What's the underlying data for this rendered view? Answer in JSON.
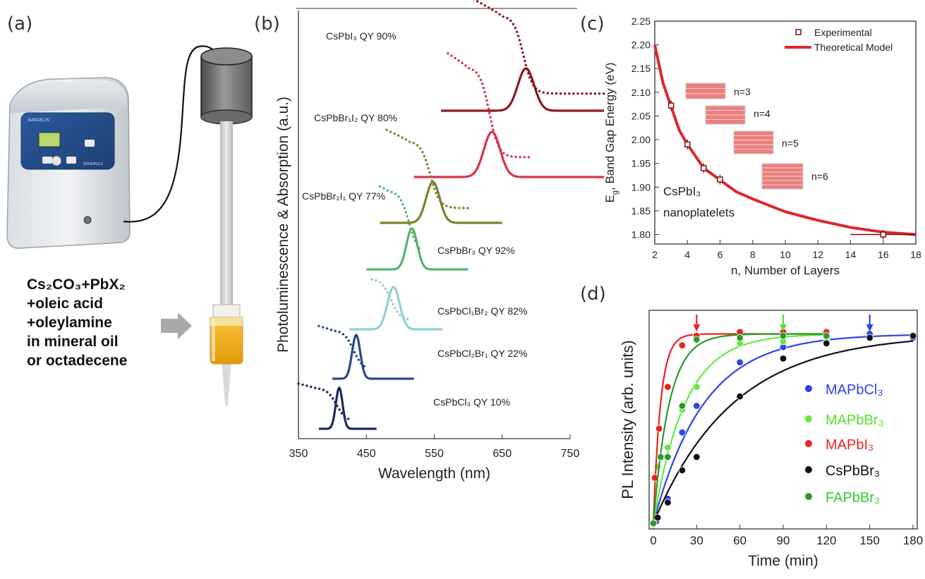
{
  "panels": {
    "a": {
      "label": "(a)",
      "instrument_brand": "BANDELIN",
      "instrument_model": "SONOPULS",
      "recipe": [
        "Cs₂CO₃+PbX₂",
        "+oleic acid",
        "+oleylamine",
        "in mineral oil",
        "or octadecene"
      ]
    },
    "b": {
      "label": "(b)"
    },
    "c": {
      "label": "(c)"
    },
    "d": {
      "label": "(d)"
    }
  },
  "chart_data": [
    {
      "id": "b",
      "type": "line",
      "xlabel": "Wavelength (nm)",
      "ylabel": "Photoluminescence & Absorption (a.u.)",
      "xlim": [
        350,
        750
      ],
      "xticks": [
        "350",
        "450",
        "550",
        "650",
        "750"
      ],
      "series": [
        {
          "name": "CsPbI₃  QY 90%",
          "color": "#8b1a22",
          "pl_peak_nm": 685,
          "pl_range_nm": [
            560,
            800
          ],
          "abs_range_nm": [
            608,
            800
          ]
        },
        {
          "name": "CsPbBr₁I₂  QY 80%",
          "color": "#d6344a",
          "pl_peak_nm": 635,
          "pl_range_nm": [
            520,
            800
          ],
          "abs_range_nm": [
            570,
            690
          ]
        },
        {
          "name": "CsPbBr₂I₁  QY 77%",
          "color": "#7f7f2e",
          "pl_peak_nm": 548,
          "pl_range_nm": [
            470,
            650
          ],
          "abs_range_nm": [
            480,
            600
          ]
        },
        {
          "name": "CsPbBr₃  QY 92%",
          "color": "#55b56a",
          "pl_peak_nm": 517,
          "pl_range_nm": [
            450,
            600
          ],
          "abs_range_nm": [
            470,
            530
          ]
        },
        {
          "name": "CsPbCl₁Br₂  QY 82%",
          "color": "#8fcfd6",
          "pl_peak_nm": 490,
          "pl_range_nm": [
            425,
            562
          ],
          "abs_range_nm": [
            458,
            515
          ]
        },
        {
          "name": "CsPbCl₂Br₁  QY 22%",
          "color": "#2b4889",
          "pl_peak_nm": 435,
          "pl_range_nm": [
            400,
            520
          ],
          "abs_range_nm": [
            380,
            450
          ]
        },
        {
          "name": "CsPbCl₃  QY 10%",
          "color": "#1e2a5c",
          "pl_peak_nm": 410,
          "pl_range_nm": [
            380,
            465
          ],
          "abs_range_nm": [
            350,
            425
          ]
        }
      ]
    },
    {
      "id": "c",
      "type": "scatter",
      "xlabel": "n, Number of Layers",
      "ylabel": "E₉, Band Gap Energy (eV)",
      "ylabel_parts": [
        "E",
        "g",
        ", Band Gap Energy (eV)"
      ],
      "xlim": [
        2,
        18
      ],
      "ylim": [
        1.78,
        2.25
      ],
      "xticks": [
        "2",
        "4",
        "6",
        "8",
        "10",
        "12",
        "14",
        "16",
        "18"
      ],
      "yticks": [
        "1.80",
        "1.85",
        "1.90",
        "1.95",
        "2.00",
        "2.05",
        "2.10",
        "2.15",
        "2.20",
        "2.25"
      ],
      "legend": [
        "Experimental",
        "Theoretical Model"
      ],
      "legend_position": "top-right",
      "annotation": [
        "CsPbI₃",
        "nanoplatelets"
      ],
      "layer_labels": [
        "n=3",
        "n=4",
        "n=5",
        "n=6"
      ],
      "experimental": [
        {
          "x": 3,
          "y": 2.072
        },
        {
          "x": 4,
          "y": 1.99
        },
        {
          "x": 5,
          "y": 1.94
        },
        {
          "x": 6,
          "y": 1.916
        },
        {
          "x": 16,
          "y": 1.8
        }
      ],
      "theoretical_model": {
        "x": [
          2,
          2.5,
          3,
          3.5,
          4,
          5,
          6,
          7,
          8,
          10,
          12,
          14,
          16,
          18
        ],
        "y": [
          2.2,
          2.12,
          2.07,
          2.02,
          1.99,
          1.94,
          1.915,
          1.89,
          1.875,
          1.848,
          1.83,
          1.815,
          1.805,
          1.8
        ]
      },
      "colors": {
        "model": "#e0262b",
        "marker": "#7a1010"
      }
    },
    {
      "id": "d",
      "type": "scatter",
      "xlabel": "Time (min)",
      "ylabel": "PL Intensity (arb. units)",
      "xlim": [
        0,
        180
      ],
      "ylim": [
        0,
        1.08
      ],
      "xticks": [
        "0",
        "30",
        "60",
        "90",
        "120",
        "150",
        "180"
      ],
      "legend_position": "bottom-right",
      "arrows_at_min": [
        30,
        90,
        150
      ],
      "arrow_colors": [
        "#ee2222",
        "#55dd33",
        "#2244ee"
      ],
      "series": [
        {
          "name": "MAPbCl₃",
          "color": "#2b44e8",
          "label_color": "#2b44e8",
          "points": [
            [
              0,
              0
            ],
            [
              2,
              0.01
            ],
            [
              10,
              0.13
            ],
            [
              20,
              0.48
            ],
            [
              30,
              0.62
            ],
            [
              60,
              0.85
            ],
            [
              90,
              0.93
            ],
            [
              120,
              0.97
            ],
            [
              150,
              1.0
            ],
            [
              180,
              0.98
            ]
          ]
        },
        {
          "name": "MAPbBr₃",
          "color": "#66e840",
          "label_color": "#55e030",
          "points": [
            [
              0,
              0
            ],
            [
              3,
              0.3
            ],
            [
              6,
              0.35
            ],
            [
              10,
              0.4
            ],
            [
              20,
              0.6
            ],
            [
              30,
              0.72
            ],
            [
              60,
              0.95
            ],
            [
              90,
              0.96
            ],
            [
              120,
              0.98
            ]
          ]
        },
        {
          "name": "MAPbI₃",
          "color": "#ee2222",
          "label_color": "#ee2222",
          "points": [
            [
              0,
              0
            ],
            [
              1,
              0.24
            ],
            [
              4,
              0.5
            ],
            [
              10,
              0.72
            ],
            [
              20,
              0.94
            ],
            [
              30,
              0.99
            ],
            [
              60,
              1.01
            ],
            [
              90,
              1.01
            ],
            [
              120,
              1.01
            ]
          ]
        },
        {
          "name": "CsPbBr₃",
          "color": "#111111",
          "label_color": "#111111",
          "points": [
            [
              0,
              0
            ],
            [
              3,
              0.03
            ],
            [
              10,
              0.11
            ],
            [
              20,
              0.28
            ],
            [
              30,
              0.35
            ],
            [
              60,
              0.67
            ],
            [
              90,
              0.87
            ],
            [
              120,
              0.95
            ],
            [
              150,
              0.98
            ],
            [
              180,
              0.99
            ]
          ]
        },
        {
          "name": "FAPbBr₃",
          "color": "#2a9a2a",
          "label_color": "#33cc33",
          "points": [
            [
              0,
              0
            ],
            [
              5,
              0.35
            ],
            [
              10,
              0.35
            ],
            [
              20,
              0.62
            ],
            [
              30,
              0.97
            ],
            [
              60,
              0.98
            ],
            [
              90,
              0.99
            ],
            [
              120,
              0.99
            ]
          ]
        }
      ]
    }
  ]
}
